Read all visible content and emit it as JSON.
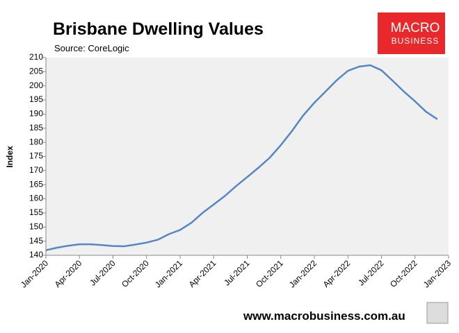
{
  "chart_data": {
    "type": "line",
    "title": "Brisbane Dwelling Values",
    "subtitle": "Source: CoreLogic",
    "y_label": "Index",
    "categories": [
      "Jan-2020",
      null,
      null,
      "Apr-2020",
      null,
      null,
      "Jul-2020",
      null,
      null,
      "Oct-2020",
      null,
      null,
      "Jan-2021",
      null,
      null,
      "Apr-2021",
      null,
      null,
      "Jul-2021",
      null,
      null,
      "Oct-2021",
      null,
      null,
      "Jan-2022",
      null,
      null,
      "Apr-2022",
      null,
      null,
      "Jul-2022",
      null,
      null,
      "Oct-2022",
      null,
      null,
      "Jan-2023"
    ],
    "series": [
      {
        "name": "Brisbane",
        "color": "#5585c5",
        "values": [
          141.8,
          142.7,
          143.4,
          143.9,
          143.9,
          143.6,
          143.3,
          143.2,
          143.8,
          144.5,
          145.5,
          147.5,
          149,
          151.5,
          155,
          158,
          161,
          164.5,
          167.7,
          171,
          174.5,
          179,
          184,
          189.5,
          194,
          198,
          202,
          205.3,
          206.8,
          207.3,
          205.5,
          201.8,
          198,
          194.5,
          190.8,
          188.2,
          null
        ]
      }
    ],
    "ylim": [
      140,
      210
    ],
    "yticks": [
      140,
      145,
      150,
      155,
      160,
      165,
      170,
      175,
      180,
      185,
      190,
      195,
      200,
      205,
      210
    ],
    "grid": false,
    "plot_background": "#f0f0f0",
    "legend": false
  },
  "logo": {
    "line1": "MACRO",
    "line2": "BUSINESS"
  },
  "footer": "www.macrobusiness.com.au"
}
